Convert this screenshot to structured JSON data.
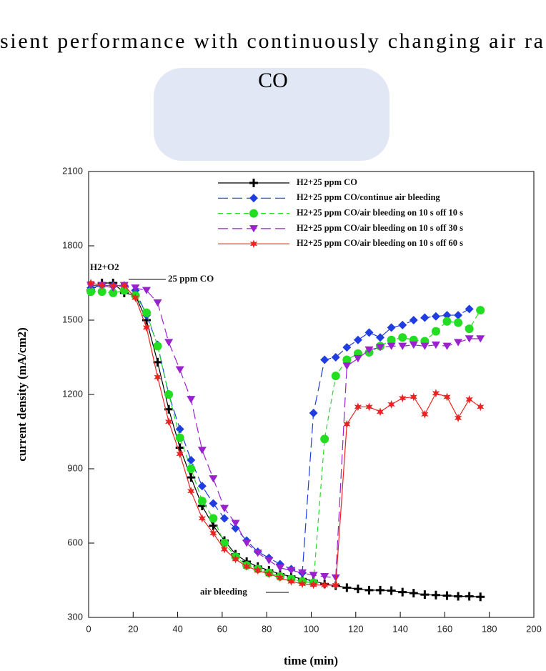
{
  "chart_data": {
    "type": "line",
    "title": "sient performance with continuously changing air ra",
    "subtitle": "CO",
    "xlabel": "time (min)",
    "ylabel": "current density (mA/cm2)",
    "annotations": [
      "H2+O2",
      "25 ppm CO",
      "air bleeding"
    ],
    "x": [
      1,
      6,
      11,
      16,
      21,
      26,
      31,
      36,
      41,
      46,
      51,
      56,
      61,
      66,
      71,
      76,
      81,
      86,
      91,
      96,
      101,
      106,
      111,
      116,
      121,
      126,
      131,
      136,
      141,
      146,
      151,
      156,
      161,
      166,
      171,
      176
    ],
    "series": [
      {
        "name": "H2+25 ppm CO",
        "color": "#000000",
        "marker": "plus",
        "line_style": "solid",
        "values": [
          1620,
          1650,
          1650,
          1610,
          1600,
          1500,
          1330,
          1140,
          985,
          865,
          750,
          670,
          610,
          555,
          525,
          505,
          490,
          475,
          465,
          455,
          448,
          435,
          428,
          420,
          415,
          410,
          410,
          408,
          402,
          398,
          392,
          390,
          388,
          385,
          385,
          383
        ]
      },
      {
        "name": "H2+25 ppm CO/continue air bleeding",
        "color": "#1f3de0",
        "marker": "diamond",
        "line_style": "longdash",
        "values": [
          1630,
          1640,
          1640,
          1640,
          1620,
          1520,
          1400,
          1200,
          1060,
          935,
          830,
          760,
          700,
          660,
          610,
          565,
          540,
          515,
          495,
          480,
          1125,
          1340,
          1350,
          1390,
          1420,
          1450,
          1430,
          1470,
          1480,
          1500,
          1510,
          1515,
          1520,
          1520,
          1545,
          1540
        ]
      },
      {
        "name": "H2+25 ppm CO/air bleeding on 10 s off 10 s",
        "color": "#22dd22",
        "marker": "circle",
        "line_style": "dash",
        "values": [
          1615,
          1615,
          1610,
          1620,
          1600,
          1530,
          1395,
          1200,
          1025,
          900,
          770,
          700,
          600,
          545,
          510,
          495,
          480,
          465,
          455,
          445,
          440,
          1020,
          1275,
          1340,
          1365,
          1370,
          1395,
          1420,
          1430,
          1420,
          1415,
          1455,
          1495,
          1490,
          1465,
          1540
        ]
      },
      {
        "name": "H2+25 ppm CO/air bleeding on 10 s off 30 s",
        "color": "#9922cc",
        "marker": "triangle-down",
        "line_style": "longdash",
        "values": [
          1640,
          1640,
          1630,
          1640,
          1630,
          1620,
          1570,
          1410,
          1300,
          1180,
          975,
          860,
          740,
          680,
          600,
          560,
          530,
          500,
          490,
          480,
          470,
          465,
          460,
          1315,
          1345,
          1380,
          1390,
          1395,
          1395,
          1400,
          1395,
          1400,
          1395,
          1410,
          1425,
          1425
        ]
      },
      {
        "name": "H2+25 ppm CO/air bleeding on 10 s off 60 s",
        "color": "#ee2222",
        "marker": "star",
        "line_style": "solid",
        "values": [
          1650,
          1640,
          1640,
          1640,
          1590,
          1470,
          1270,
          1090,
          960,
          810,
          700,
          640,
          575,
          535,
          505,
          490,
          475,
          460,
          445,
          435,
          432,
          430,
          430,
          1080,
          1150,
          1150,
          1130,
          1160,
          1185,
          1190,
          1120,
          1205,
          1190,
          1105,
          1180,
          1150
        ]
      }
    ],
    "xlim": [
      0,
      200
    ],
    "xticks": [
      0,
      20,
      40,
      60,
      80,
      100,
      120,
      140,
      160,
      180,
      200
    ],
    "ylim": [
      300,
      2100
    ],
    "yticks": [
      300,
      600,
      900,
      1200,
      1500,
      1800,
      2100
    ],
    "legend": "upper right",
    "grid": false
  }
}
